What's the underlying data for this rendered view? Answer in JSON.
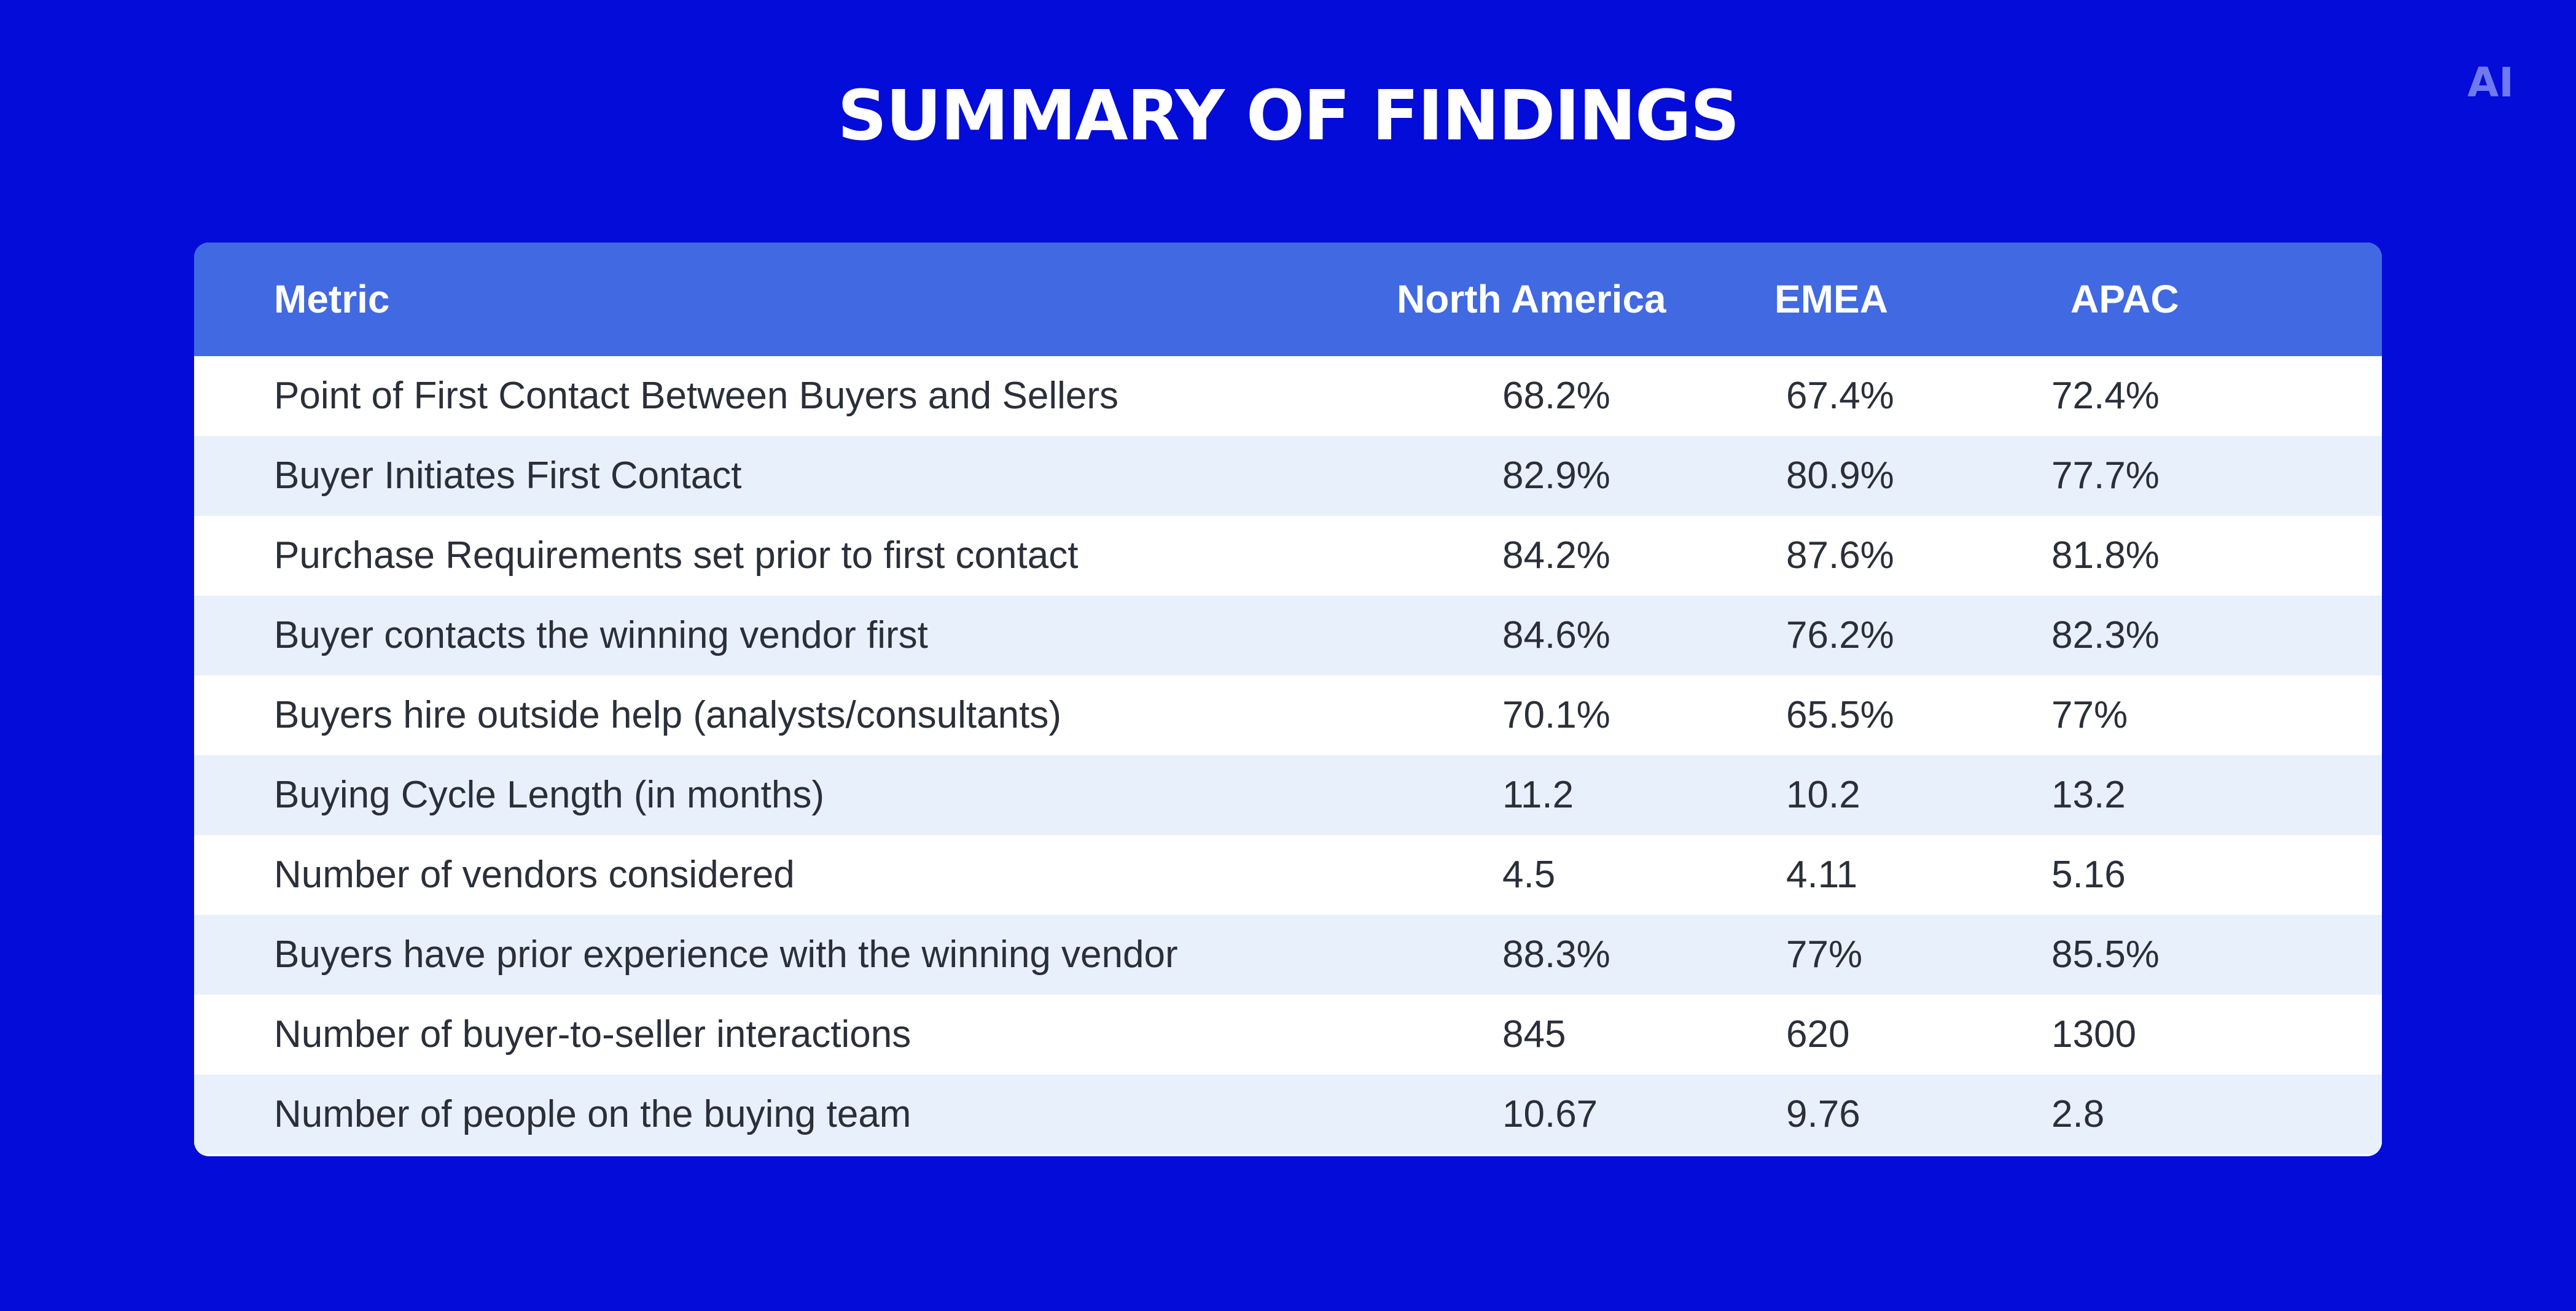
{
  "page": {
    "title": "SUMMARY OF FINDINGS",
    "logo": "AI"
  },
  "colors": {
    "background": "#040cd9",
    "header": "#4169e1",
    "row_alt": "#e8f0fc",
    "row_plain": "#ffffff",
    "text": "#2b2f3a"
  },
  "chart_data": {
    "type": "table",
    "title": "SUMMARY OF FINDINGS",
    "columns": [
      "Metric",
      "North America",
      "EMEA",
      "APAC"
    ],
    "rows": [
      [
        "Point of First Contact Between Buyers and Sellers",
        "68.2%",
        "67.4%",
        "72.4%"
      ],
      [
        "Buyer Initiates First Contact",
        "82.9%",
        "80.9%",
        "77.7%"
      ],
      [
        "Purchase Requirements set prior to first contact",
        "84.2%",
        "87.6%",
        "81.8%"
      ],
      [
        "Buyer contacts the winning vendor first",
        "84.6%",
        "76.2%",
        "82.3%"
      ],
      [
        "Buyers hire outside help (analysts/consultants)",
        "70.1%",
        "65.5%",
        "77%"
      ],
      [
        "Buying Cycle Length (in months)",
        "11.2",
        "10.2",
        "13.2"
      ],
      [
        "Number of vendors considered",
        "4.5",
        "4.11",
        "5.16"
      ],
      [
        "Buyers have prior experience with the winning vendor",
        "88.3%",
        "77%",
        "85.5%"
      ],
      [
        "Number of buyer-to-seller interactions",
        "845",
        "620",
        "1300"
      ],
      [
        "Number of people on the buying team",
        "10.67",
        "9.76",
        "2.8"
      ]
    ]
  }
}
